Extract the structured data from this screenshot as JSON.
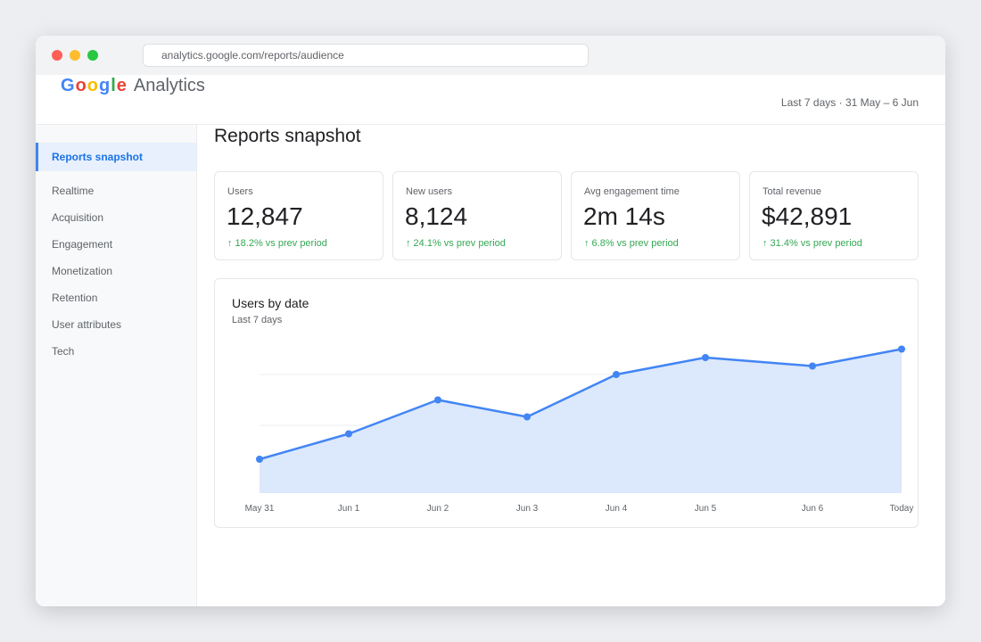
{
  "browser": {
    "url": "analytics.google.com/reports/audience"
  },
  "header": {
    "logo_letters": [
      {
        "char": "G",
        "color": "#4285F4"
      },
      {
        "char": "o",
        "color": "#EA4335"
      },
      {
        "char": "o",
        "color": "#FBBC05"
      },
      {
        "char": "g",
        "color": "#4285F4"
      },
      {
        "char": "l",
        "color": "#34A853"
      },
      {
        "char": "e",
        "color": "#EA4335"
      }
    ],
    "product_name": "Analytics",
    "date_range": "Last 7 days · 31 May – 6 Jun"
  },
  "sidebar": {
    "active_item": "Reports snapshot",
    "items": [
      {
        "label": "Realtime"
      },
      {
        "label": "Acquisition"
      },
      {
        "label": "Engagement"
      },
      {
        "label": "Monetization"
      },
      {
        "label": "Retention"
      },
      {
        "label": "User attributes"
      },
      {
        "label": "Tech"
      }
    ]
  },
  "main": {
    "title": "Reports snapshot",
    "metrics": [
      {
        "label": "Users",
        "value": "12,847",
        "delta": "↑ 18.2% vs prev period"
      },
      {
        "label": "New users",
        "value": "8,124",
        "delta": "↑ 24.1% vs prev period"
      },
      {
        "label": "Avg engagement time",
        "value": "2m 14s",
        "delta": "↑ 6.8% vs prev period"
      },
      {
        "label": "Total revenue",
        "value": "$42,891",
        "delta": "↑ 31.4% vs prev period"
      }
    ],
    "chart_card": {
      "title": "Users by date",
      "subtitle": "Last 7 days"
    }
  },
  "colors": {
    "accent": "#4285F4",
    "active_nav_bg": "#E8F0FE",
    "positive": "#34A853",
    "chart_line": "#4285F4",
    "chart_fill": "#DCE8FB"
  },
  "chart_data": {
    "type": "area",
    "title": "Users by date",
    "subtitle": "Last 7 days",
    "categories": [
      "May 31",
      "Jun 1",
      "Jun 2",
      "Jun 3",
      "Jun 4",
      "Jun 5",
      "Jun 6",
      "Today"
    ],
    "x_positions": [
      0,
      1,
      2,
      3,
      4,
      5,
      6.2,
      7.2
    ],
    "values": [
      20,
      35,
      55,
      45,
      70,
      80,
      75,
      85
    ],
    "ylim": [
      0,
      100
    ],
    "gridlines": [
      10,
      40,
      70
    ],
    "grid": true,
    "legend": "none",
    "markers": true
  }
}
